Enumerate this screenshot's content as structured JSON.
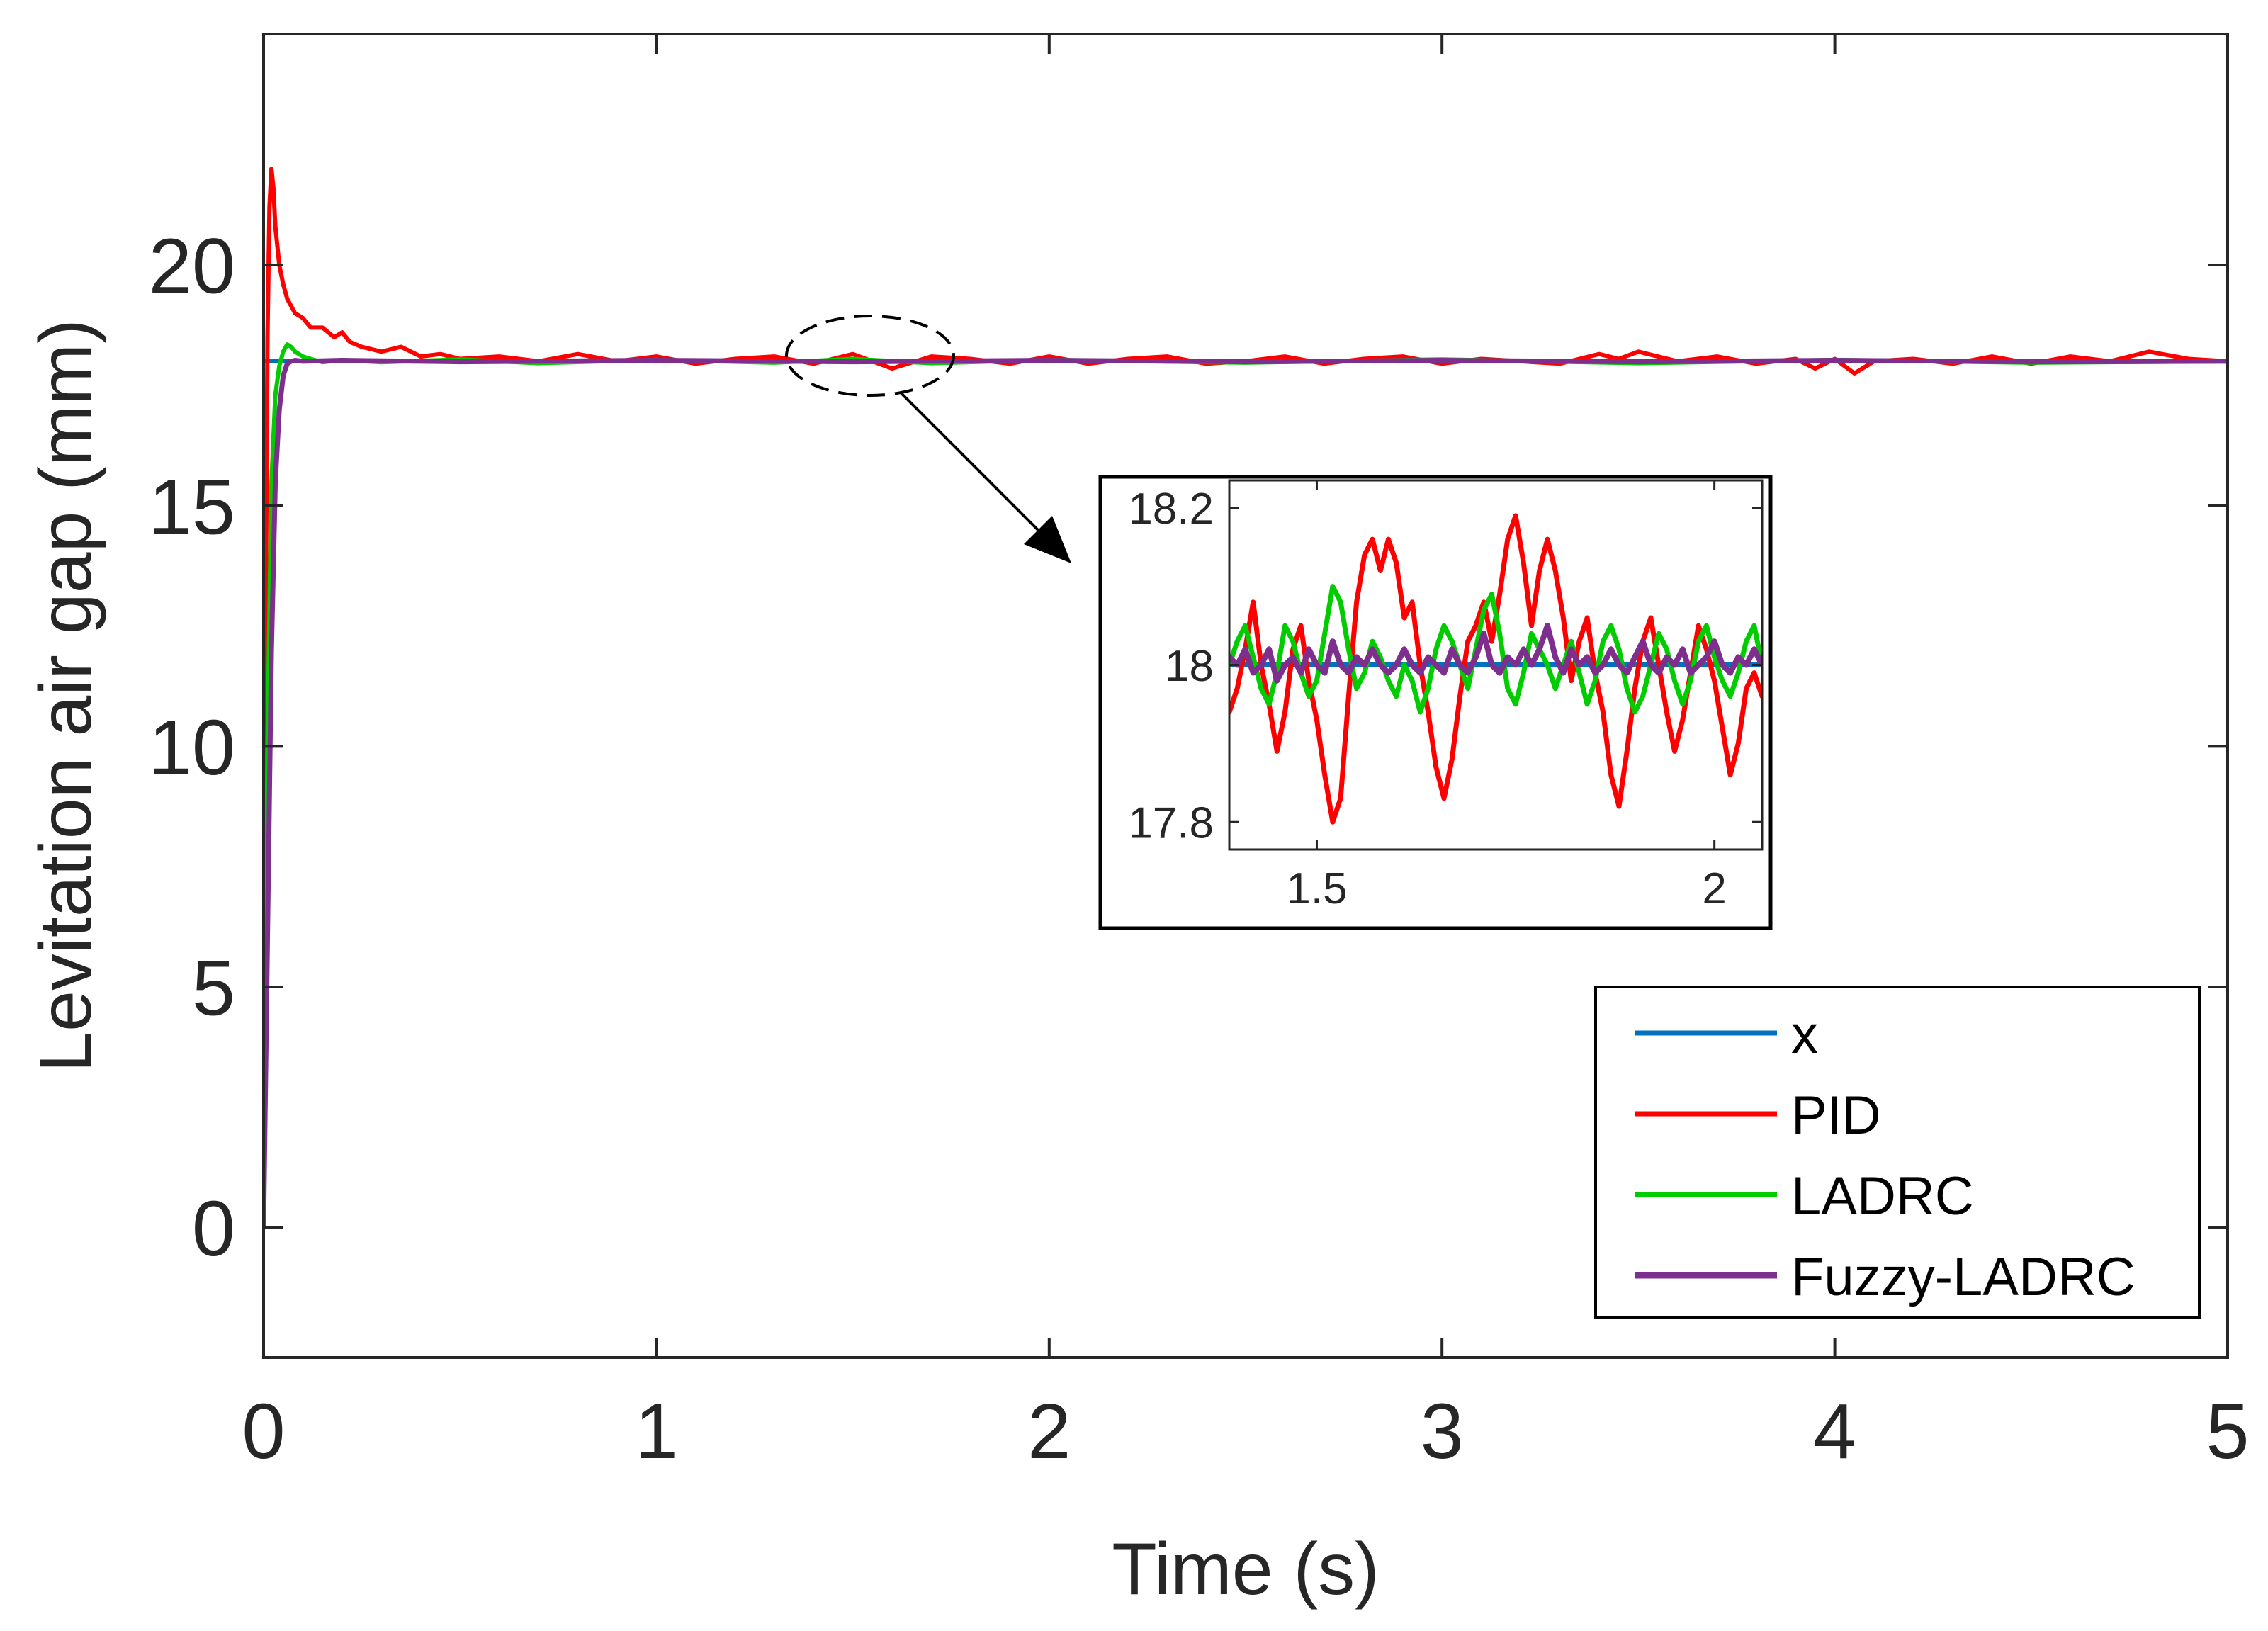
{
  "chart_data": {
    "main": {
      "type": "line",
      "title": "",
      "xlabel": "Time (s)",
      "ylabel": "Levitation air gap (mm)",
      "xlim": [
        0,
        5
      ],
      "ylim": [
        -2.7,
        24.8
      ],
      "xticks": [
        0,
        1,
        2,
        3,
        4,
        5
      ],
      "xtick_labels": [
        "0",
        "1",
        "2",
        "3",
        "4",
        "5"
      ],
      "yticks": [
        0,
        5,
        10,
        15,
        20
      ],
      "ytick_labels": [
        "0",
        "5",
        "10",
        "15",
        "20"
      ],
      "grid": false,
      "legend_position": "bottom-right",
      "series": [
        {
          "name": "x",
          "color": "#0072BD",
          "x": [
            0,
            0.005,
            5
          ],
          "y": [
            18,
            18,
            18
          ]
        },
        {
          "name": "PID",
          "color": "#FF0000",
          "x": [
            0,
            0.005,
            0.01,
            0.015,
            0.02,
            0.025,
            0.03,
            0.04,
            0.05,
            0.06,
            0.08,
            0.1,
            0.12,
            0.15,
            0.18,
            0.2,
            0.22,
            0.25,
            0.3,
            0.35,
            0.4,
            0.45,
            0.5,
            0.6,
            0.7,
            0.8,
            0.9,
            1.0,
            1.1,
            1.2,
            1.3,
            1.4,
            1.5,
            1.6,
            1.7,
            1.8,
            1.9,
            2.0,
            2.1,
            2.2,
            2.3,
            2.4,
            2.5,
            2.6,
            2.7,
            2.8,
            2.9,
            3.0,
            3.1,
            3.2,
            3.3,
            3.4,
            3.45,
            3.5,
            3.6,
            3.7,
            3.8,
            3.9,
            3.95,
            4.0,
            4.05,
            4.1,
            4.2,
            4.3,
            4.4,
            4.5,
            4.6,
            4.7,
            4.8,
            4.9,
            5.0
          ],
          "y": [
            0,
            12,
            18.5,
            21.2,
            22.0,
            21.6,
            20.8,
            20.0,
            19.6,
            19.3,
            19.0,
            18.9,
            18.7,
            18.7,
            18.5,
            18.6,
            18.4,
            18.3,
            18.2,
            18.3,
            18.1,
            18.15,
            18.05,
            18.1,
            18.0,
            18.15,
            18.0,
            18.1,
            17.95,
            18.05,
            18.1,
            17.95,
            18.15,
            17.85,
            18.1,
            18.05,
            17.95,
            18.1,
            17.95,
            18.05,
            18.1,
            17.95,
            18.0,
            18.1,
            17.95,
            18.05,
            18.1,
            17.95,
            18.05,
            18.0,
            17.95,
            18.15,
            18.05,
            18.2,
            18.0,
            18.1,
            17.95,
            18.05,
            17.85,
            18.05,
            17.75,
            18.0,
            18.05,
            17.95,
            18.1,
            17.95,
            18.1,
            18.0,
            18.2,
            18.05,
            18.0
          ]
        },
        {
          "name": "LADRC",
          "color": "#00CC00",
          "x": [
            0,
            0.01,
            0.02,
            0.03,
            0.04,
            0.05,
            0.06,
            0.07,
            0.08,
            0.1,
            0.12,
            0.15,
            0.2,
            0.3,
            0.5,
            0.7,
            1.0,
            1.3,
            1.5,
            1.7,
            2.0,
            2.5,
            3.0,
            3.5,
            4.0,
            4.5,
            5.0
          ],
          "y": [
            0,
            10,
            15.5,
            17.3,
            17.9,
            18.2,
            18.35,
            18.3,
            18.2,
            18.1,
            18.05,
            17.98,
            18.03,
            17.98,
            18.04,
            17.96,
            18.03,
            17.97,
            18.05,
            17.96,
            18.03,
            17.97,
            18.04,
            17.96,
            18.03,
            17.97,
            18.0
          ]
        },
        {
          "name": "Fuzzy-LADRC",
          "color": "#7E2F8E",
          "x": [
            0,
            0.01,
            0.02,
            0.03,
            0.04,
            0.05,
            0.06,
            0.07,
            0.08,
            0.1,
            0.2,
            0.5,
            1.0,
            1.5,
            2.0,
            2.5,
            3.0,
            3.5,
            4.0,
            4.5,
            5.0
          ],
          "y": [
            0,
            6,
            12,
            15.5,
            17.0,
            17.7,
            17.95,
            18.0,
            18.02,
            18.0,
            18.02,
            17.99,
            18.02,
            17.99,
            18.02,
            17.99,
            18.02,
            17.99,
            18.02,
            17.99,
            18.0
          ]
        }
      ]
    },
    "inset": {
      "type": "line",
      "xlim": [
        1.39,
        2.06
      ],
      "ylim": [
        17.765,
        18.235
      ],
      "xticks": [
        1.5,
        2
      ],
      "xtick_labels": [
        "1.5",
        "2"
      ],
      "yticks": [
        17.8,
        18,
        18.2
      ],
      "ytick_labels": [
        "17.8",
        "18",
        "18.2"
      ],
      "grid": false,
      "series": [
        {
          "name": "x",
          "color": "#0072BD",
          "x": [
            1.39,
            2.06
          ],
          "y": [
            18.0,
            18.0
          ]
        },
        {
          "name": "PID",
          "color": "#FF0000",
          "x": [
            1.39,
            1.4,
            1.41,
            1.42,
            1.43,
            1.44,
            1.45,
            1.46,
            1.47,
            1.48,
            1.49,
            1.5,
            1.51,
            1.52,
            1.53,
            1.54,
            1.55,
            1.56,
            1.57,
            1.58,
            1.59,
            1.6,
            1.61,
            1.62,
            1.63,
            1.64,
            1.65,
            1.66,
            1.67,
            1.68,
            1.69,
            1.7,
            1.71,
            1.72,
            1.73,
            1.74,
            1.75,
            1.76,
            1.77,
            1.78,
            1.79,
            1.8,
            1.81,
            1.82,
            1.83,
            1.84,
            1.85,
            1.86,
            1.87,
            1.88,
            1.89,
            1.9,
            1.91,
            1.92,
            1.93,
            1.94,
            1.95,
            1.96,
            1.97,
            1.98,
            1.99,
            2.0,
            2.01,
            2.02,
            2.03,
            2.04,
            2.05,
            2.06
          ],
          "y": [
            17.94,
            17.97,
            18.02,
            18.08,
            18.0,
            17.95,
            17.89,
            17.94,
            18.02,
            18.05,
            17.98,
            17.93,
            17.86,
            17.8,
            17.83,
            17.96,
            18.08,
            18.14,
            18.16,
            18.12,
            18.16,
            18.13,
            18.06,
            18.08,
            18.0,
            17.94,
            17.87,
            17.83,
            17.88,
            17.96,
            18.03,
            18.05,
            18.08,
            18.03,
            18.09,
            18.16,
            18.19,
            18.13,
            18.05,
            18.12,
            18.16,
            18.12,
            18.06,
            17.98,
            18.03,
            18.06,
            17.99,
            17.94,
            17.86,
            17.82,
            17.89,
            17.97,
            18.03,
            18.06,
            18.0,
            17.94,
            17.89,
            17.93,
            17.99,
            18.05,
            18.02,
            17.98,
            17.92,
            17.86,
            17.9,
            17.97,
            17.99,
            17.96
          ]
        },
        {
          "name": "LADRC",
          "color": "#00CC00",
          "x": [
            1.39,
            1.4,
            1.41,
            1.42,
            1.43,
            1.44,
            1.45,
            1.46,
            1.47,
            1.48,
            1.49,
            1.5,
            1.51,
            1.52,
            1.53,
            1.54,
            1.55,
            1.56,
            1.57,
            1.58,
            1.59,
            1.6,
            1.61,
            1.62,
            1.63,
            1.64,
            1.65,
            1.66,
            1.67,
            1.68,
            1.69,
            1.7,
            1.71,
            1.72,
            1.73,
            1.74,
            1.75,
            1.76,
            1.77,
            1.78,
            1.79,
            1.8,
            1.81,
            1.82,
            1.83,
            1.84,
            1.85,
            1.86,
            1.87,
            1.88,
            1.89,
            1.9,
            1.91,
            1.92,
            1.93,
            1.94,
            1.95,
            1.96,
            1.97,
            1.98,
            1.99,
            2.0,
            2.01,
            2.02,
            2.03,
            2.04,
            2.05,
            2.06
          ],
          "y": [
            18.0,
            18.03,
            18.05,
            18.01,
            17.97,
            17.95,
            17.99,
            18.05,
            18.03,
            17.99,
            17.96,
            17.98,
            18.04,
            18.1,
            18.08,
            18.02,
            17.97,
            17.99,
            18.03,
            18.01,
            17.98,
            17.96,
            18.0,
            17.98,
            17.94,
            17.97,
            18.02,
            18.05,
            18.03,
            18.0,
            17.97,
            18.02,
            18.07,
            18.09,
            18.04,
            17.97,
            17.95,
            17.99,
            18.04,
            18.02,
            18.0,
            17.97,
            18.0,
            18.03,
            17.99,
            17.95,
            17.98,
            18.03,
            18.05,
            18.02,
            17.97,
            17.94,
            17.96,
            18.0,
            18.04,
            18.02,
            17.98,
            17.95,
            17.98,
            18.03,
            18.05,
            18.01,
            17.98,
            17.96,
            17.99,
            18.03,
            18.05,
            18.0
          ]
        },
        {
          "name": "Fuzzy-LADRC",
          "color": "#7E2F8E",
          "x": [
            1.39,
            1.4,
            1.41,
            1.42,
            1.43,
            1.44,
            1.45,
            1.46,
            1.47,
            1.48,
            1.49,
            1.5,
            1.51,
            1.52,
            1.53,
            1.54,
            1.55,
            1.56,
            1.57,
            1.58,
            1.59,
            1.6,
            1.61,
            1.62,
            1.63,
            1.64,
            1.65,
            1.66,
            1.67,
            1.68,
            1.69,
            1.7,
            1.71,
            1.72,
            1.73,
            1.74,
            1.75,
            1.76,
            1.77,
            1.78,
            1.79,
            1.8,
            1.81,
            1.82,
            1.83,
            1.84,
            1.85,
            1.86,
            1.87,
            1.88,
            1.89,
            1.9,
            1.91,
            1.92,
            1.93,
            1.94,
            1.95,
            1.96,
            1.97,
            1.98,
            1.99,
            2.0,
            2.01,
            2.02,
            2.03,
            2.04,
            2.05,
            2.06
          ],
          "y": [
            18.01,
            18.0,
            18.02,
            17.99,
            18.0,
            18.02,
            17.98,
            18.0,
            18.01,
            17.99,
            18.02,
            18.0,
            17.99,
            18.03,
            18.0,
            17.99,
            18.01,
            18.0,
            18.02,
            18.0,
            17.99,
            18.0,
            18.02,
            18.0,
            17.99,
            18.01,
            18.0,
            17.99,
            18.02,
            18.0,
            17.99,
            18.01,
            18.04,
            18.0,
            17.99,
            18.01,
            18.0,
            18.02,
            18.0,
            18.02,
            18.05,
            18.01,
            17.99,
            18.02,
            18.0,
            18.01,
            17.99,
            18.0,
            18.02,
            18.0,
            17.99,
            18.01,
            18.03,
            18.0,
            17.99,
            18.01,
            18.0,
            18.02,
            17.99,
            18.0,
            18.01,
            18.03,
            18.0,
            17.99,
            18.01,
            18.0,
            18.02,
            18.0
          ]
        }
      ]
    }
  }
}
